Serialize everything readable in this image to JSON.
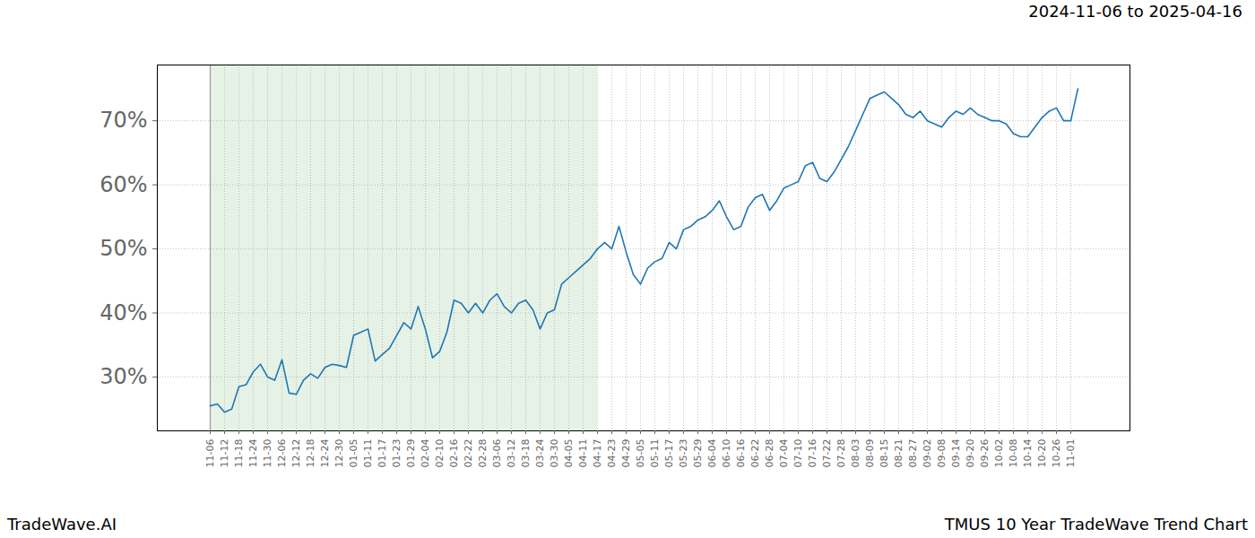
{
  "chart_data": {
    "type": "line",
    "title": "2024-11-06 to 2025-04-16",
    "caption_left": "TradeWave.AI",
    "caption_right": "TMUS 10 Year TradeWave Trend Chart",
    "categories": [
      "11-06",
      null,
      "11-12",
      null,
      "11-18",
      null,
      "11-24",
      null,
      "11-30",
      null,
      "12-06",
      null,
      "12-12",
      null,
      "12-18",
      null,
      "12-24",
      null,
      "12-30",
      null,
      "01-05",
      null,
      "01-11",
      null,
      "01-17",
      null,
      "01-23",
      null,
      "01-29",
      null,
      "02-04",
      null,
      "02-10",
      null,
      "02-16",
      null,
      "02-22",
      null,
      "02-28",
      null,
      "03-06",
      null,
      "03-12",
      null,
      "03-18",
      null,
      "03-24",
      null,
      "03-30",
      null,
      "04-05",
      null,
      "04-11",
      null,
      "04-17",
      null,
      "04-23",
      null,
      "04-29",
      null,
      "05-05",
      null,
      "05-11",
      null,
      "05-17",
      null,
      "05-23",
      null,
      "05-29",
      null,
      "06-04",
      null,
      "06-10",
      null,
      "06-16",
      null,
      "06-22",
      null,
      "06-28",
      null,
      "07-04",
      null,
      "07-10",
      null,
      "07-16",
      null,
      "07-22",
      null,
      "07-28",
      null,
      "08-03",
      null,
      "08-09",
      null,
      "08-15",
      null,
      "08-21",
      null,
      "08-27",
      null,
      "09-02",
      null,
      "09-08",
      null,
      "09-14",
      null,
      "09-20",
      null,
      "09-26",
      null,
      "10-02",
      null,
      "10-08",
      null,
      "10-14",
      null,
      "10-20",
      null,
      "10-26",
      null,
      "11-01",
      null
    ],
    "values": [
      25.5,
      25.8,
      24.5,
      25,
      28.5,
      28.8,
      30.8,
      32,
      30,
      29.5,
      32.7,
      27.5,
      27.3,
      29.5,
      30.5,
      29.8,
      31.5,
      32,
      31.8,
      31.5,
      36.5,
      37,
      37.5,
      32.5,
      33.5,
      34.5,
      36.5,
      38.5,
      37.5,
      41,
      37.5,
      33,
      34,
      37,
      42,
      41.5,
      40,
      41.5,
      40,
      42,
      43,
      41,
      40,
      41.5,
      42,
      40.5,
      37.5,
      40,
      40.5,
      44.5,
      45.5,
      46.5,
      47.5,
      48.5,
      50,
      51,
      50,
      53.5,
      49.5,
      46,
      44.5,
      47,
      48,
      48.5,
      51,
      50,
      53,
      53.5,
      54.5,
      55,
      56,
      57.5,
      55,
      53,
      53.5,
      56.5,
      58,
      58.5,
      56,
      57.5,
      59.5,
      60,
      60.5,
      63,
      63.5,
      61,
      60.5,
      62,
      64,
      66,
      68.5,
      71,
      73.5,
      74,
      74.5,
      73.5,
      72.5,
      71,
      70.5,
      71.5,
      70,
      69.5,
      69,
      70.5,
      71.5,
      71,
      72,
      71,
      70.5,
      70,
      70,
      69.5,
      68,
      67.5,
      67.5,
      69,
      70.5,
      71.5,
      72,
      70,
      70,
      75
    ],
    "color": "#1f77b4",
    "shaded_range": [
      "11-06",
      "04-17"
    ],
    "ylim": [
      21.6,
      78.7
    ],
    "yticks": [
      {
        "value": 30,
        "label": "30%"
      },
      {
        "value": 40,
        "label": "40%"
      },
      {
        "value": 50,
        "label": "50%"
      },
      {
        "value": 60,
        "label": "60%"
      },
      {
        "value": 70,
        "label": "70%"
      }
    ],
    "grid": true
  }
}
